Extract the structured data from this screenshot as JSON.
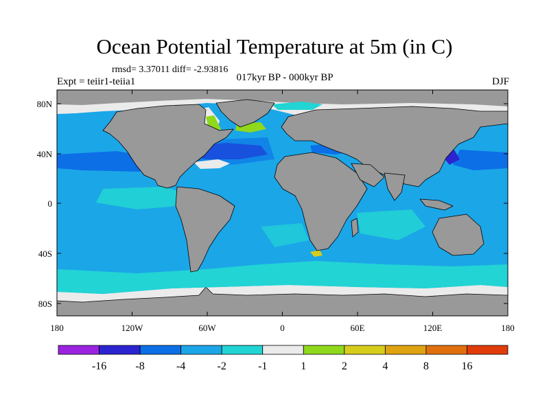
{
  "title": "Ocean Potential Temperature at 5m (in C)",
  "stats_text": "rmsd= 3.37011 diff= -2.93816",
  "experiment_text": "Expt = teiir1-teiia1",
  "period_text": "017kyr BP - 000kyr BP",
  "season_text": "DJF",
  "lon_ticks": [
    "180",
    "120W",
    "60W",
    "0",
    "60E",
    "120E",
    "180"
  ],
  "lat_ticks": [
    "80N",
    "40N",
    "0",
    "40S",
    "80S"
  ],
  "colorbar": {
    "colors": [
      "#9b23e0",
      "#2c24d0",
      "#0c6fe6",
      "#1ba6e8",
      "#22d4d4",
      "#ebebeb",
      "#8fd81c",
      "#d6cc1c",
      "#dfa311",
      "#e0700e",
      "#e03c0a"
    ],
    "labels": [
      "-16",
      "-8",
      "-4",
      "-2",
      "-1",
      "1",
      "2",
      "4",
      "8",
      "16"
    ]
  },
  "colors": {
    "land": "#999999",
    "ocean_main": "#1ba6e8",
    "ice_missing": "#ebebeb"
  }
}
